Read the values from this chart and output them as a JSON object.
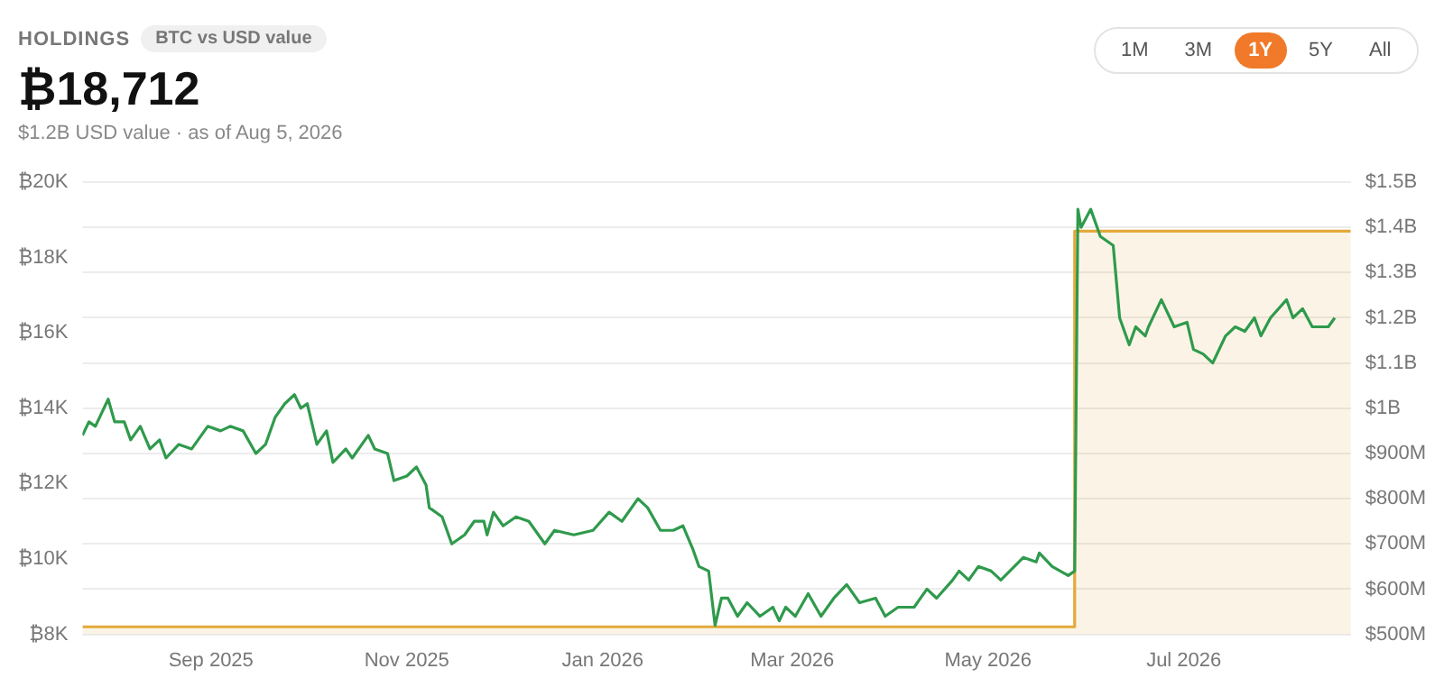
{
  "chart_data": {
    "type": "line",
    "title": "HOLDINGS",
    "subtitle": "BTC vs USD value",
    "annotations": [
      "₿18,712",
      "$1.2B USD value",
      "·",
      "as of Aug 5, 2026",
      "1M",
      "3M",
      "1Y",
      "5Y",
      "All"
    ],
    "xlim": [
      "2025-07-23",
      "2026-08-22"
    ],
    "xticks": [
      {
        "value": "2025-09-01",
        "label": "Sep 2025"
      },
      {
        "value": "2025-11-01",
        "label": "Nov 2025"
      },
      {
        "value": "2026-01-01",
        "label": "Jan 2026"
      },
      {
        "value": "2026-03-01",
        "label": "Mar 2026"
      },
      {
        "value": "2026-05-01",
        "label": "May 2026"
      },
      {
        "value": "2026-07-01",
        "label": "Jul 2026"
      }
    ],
    "ylim": [
      8000,
      20000
    ],
    "yticks": [
      {
        "value": 8000,
        "label": "₿8K"
      },
      {
        "value": 10000,
        "label": "₿10K"
      },
      {
        "value": 12000,
        "label": "₿12K"
      },
      {
        "value": 14000,
        "label": "₿14K"
      },
      {
        "value": 16000,
        "label": "₿16K"
      },
      {
        "value": 18000,
        "label": "₿18K"
      },
      {
        "value": 20000,
        "label": "₿20K"
      }
    ],
    "y2lim": [
      500000000,
      1500000000
    ],
    "y2ticks": [
      {
        "value": 500000000,
        "label": "$500M"
      },
      {
        "value": 600000000,
        "label": "$600M"
      },
      {
        "value": 700000000,
        "label": "$700M"
      },
      {
        "value": 800000000,
        "label": "$800M"
      },
      {
        "value": 900000000,
        "label": "$900M"
      },
      {
        "value": 1000000000,
        "label": "$1B"
      },
      {
        "value": 1100000000,
        "label": "$1.1B"
      },
      {
        "value": 1200000000,
        "label": "$1.2B"
      },
      {
        "value": 1300000000,
        "label": "$1.3B"
      },
      {
        "value": 1400000000,
        "label": "$1.4B"
      },
      {
        "value": 1500000000,
        "label": "$1.5B"
      }
    ],
    "grid": "y",
    "series": [
      {
        "type": "area",
        "axis": "y",
        "color": "#e3a93a",
        "x": [
          "2025-07-23",
          "2026-05-28",
          "2026-05-28",
          "2026-08-22"
        ],
        "values": [
          8200,
          8200,
          18700,
          18700
        ]
      },
      {
        "axis": "y2",
        "color": "#2f9a4c",
        "x": [
          "2025-07-23",
          "2025-07-25",
          "2025-07-27",
          "2025-07-31",
          "2025-08-02",
          "2025-08-05",
          "2025-08-07",
          "2025-08-10",
          "2025-08-13",
          "2025-08-16",
          "2025-08-18",
          "2025-08-22",
          "2025-08-26",
          "2025-08-31",
          "2025-09-04",
          "2025-09-07",
          "2025-09-11",
          "2025-09-15",
          "2025-09-18",
          "2025-09-21",
          "2025-09-24",
          "2025-09-27",
          "2025-09-29",
          "2025-10-01",
          "2025-10-04",
          "2025-10-07",
          "2025-10-09",
          "2025-10-13",
          "2025-10-15",
          "2025-10-20",
          "2025-10-22",
          "2025-10-26",
          "2025-10-28",
          "2025-11-01",
          "2025-11-04",
          "2025-11-07",
          "2025-11-08",
          "2025-11-12",
          "2025-11-15",
          "2025-11-19",
          "2025-11-22",
          "2025-11-25",
          "2025-11-26",
          "2025-11-28",
          "2025-12-01",
          "2025-12-05",
          "2025-12-09",
          "2025-12-12",
          "2025-12-14",
          "2025-12-17",
          "2025-12-23",
          "2025-12-29",
          "2026-01-03",
          "2026-01-07",
          "2026-01-12",
          "2026-01-15",
          "2026-01-19",
          "2026-01-23",
          "2026-01-26",
          "2026-01-29",
          "2026-01-31",
          "2026-02-03",
          "2026-02-05",
          "2026-02-07",
          "2026-02-09",
          "2026-02-12",
          "2026-02-15",
          "2026-02-19",
          "2026-02-23",
          "2026-02-25",
          "2026-02-27",
          "2026-03-02",
          "2026-03-06",
          "2026-03-10",
          "2026-03-14",
          "2026-03-18",
          "2026-03-22",
          "2026-03-27",
          "2026-03-30",
          "2026-04-03",
          "2026-04-08",
          "2026-04-12",
          "2026-04-15",
          "2026-04-20",
          "2026-04-22",
          "2026-04-25",
          "2026-04-28",
          "2026-05-02",
          "2026-05-05",
          "2026-05-12",
          "2026-05-16",
          "2026-05-17",
          "2026-05-21",
          "2026-05-26",
          "2026-05-28",
          "2026-05-29",
          "2026-05-30",
          "2026-06-02",
          "2026-06-03",
          "2026-06-05",
          "2026-06-09",
          "2026-06-11",
          "2026-06-14",
          "2026-06-16",
          "2026-06-19",
          "2026-06-20",
          "2026-06-24",
          "2026-06-28",
          "2026-07-02",
          "2026-07-04",
          "2026-07-07",
          "2026-07-10",
          "2026-07-14",
          "2026-07-17",
          "2026-07-20",
          "2026-07-23",
          "2026-07-25",
          "2026-07-28",
          "2026-08-02",
          "2026-08-04",
          "2026-08-07",
          "2026-08-10",
          "2026-08-13",
          "2026-08-15",
          "2026-08-17"
        ],
        "values": [
          940000000,
          970000000,
          960000000,
          1020000000,
          970000000,
          970000000,
          930000000,
          960000000,
          910000000,
          930000000,
          890000000,
          920000000,
          910000000,
          960000000,
          950000000,
          960000000,
          950000000,
          900000000,
          920000000,
          980000000,
          1010000000,
          1030000000,
          1000000000,
          1010000000,
          920000000,
          950000000,
          880000000,
          910000000,
          890000000,
          940000000,
          910000000,
          900000000,
          840000000,
          850000000,
          870000000,
          830000000,
          780000000,
          760000000,
          700000000,
          720000000,
          750000000,
          750000000,
          720000000,
          770000000,
          740000000,
          760000000,
          750000000,
          720000000,
          700000000,
          730000000,
          720000000,
          730000000,
          770000000,
          750000000,
          800000000,
          780000000,
          730000000,
          730000000,
          740000000,
          690000000,
          650000000,
          640000000,
          520000000,
          580000000,
          580000000,
          540000000,
          570000000,
          540000000,
          560000000,
          530000000,
          560000000,
          540000000,
          590000000,
          540000000,
          580000000,
          610000000,
          570000000,
          580000000,
          540000000,
          560000000,
          560000000,
          600000000,
          580000000,
          620000000,
          640000000,
          620000000,
          650000000,
          640000000,
          620000000,
          670000000,
          660000000,
          680000000,
          650000000,
          630000000,
          640000000,
          1440000000,
          1400000000,
          1440000000,
          1420000000,
          1380000000,
          1360000000,
          1200000000,
          1140000000,
          1180000000,
          1160000000,
          1180000000,
          1240000000,
          1180000000,
          1190000000,
          1130000000,
          1120000000,
          1100000000,
          1160000000,
          1180000000,
          1170000000,
          1200000000,
          1160000000,
          1200000000,
          1240000000,
          1200000000,
          1220000000,
          1180000000,
          1180000000,
          1180000000,
          1200000000
        ]
      }
    ]
  }
}
